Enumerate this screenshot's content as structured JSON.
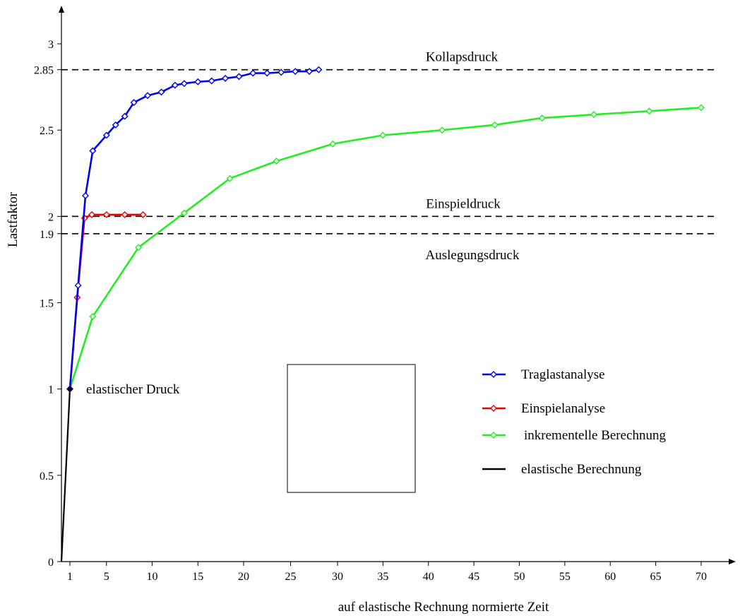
{
  "colors": {
    "traglast": "#0000ee",
    "einspiel": "#ee0000",
    "inkrementell": "#22ee22",
    "elastisch": "#000000",
    "axis": "#000000",
    "reference_line": "#000000"
  },
  "chart_data": {
    "type": "line",
    "title": "",
    "xlabel": "auf elastische Rechnung normierte Zeit",
    "ylabel": "Lastfaktor",
    "x_axis": {
      "scale": "piecewise-linear",
      "ticks": [
        1,
        5,
        10,
        15,
        20,
        25,
        30,
        35,
        40,
        45,
        50,
        55,
        60,
        65,
        70
      ],
      "tick_labels": [
        "1",
        "5",
        "10",
        "15",
        "20",
        "25",
        "30",
        "35",
        "40",
        "45",
        "50",
        "55",
        "60",
        "65",
        "70"
      ]
    },
    "y_axis": {
      "range": [
        0,
        3.05
      ],
      "ticks": [
        0,
        0.5,
        1,
        1.5,
        1.9,
        2,
        2.5,
        2.85,
        3
      ],
      "tick_labels": [
        "0",
        "0.5",
        "1",
        "1.5",
        "1.9",
        "2",
        "2.5",
        "2.85",
        "3"
      ]
    },
    "grid": false,
    "legend_position": "center-right",
    "reference_lines": [
      {
        "y": 2.85,
        "label": "Kollapsdruck",
        "label_position": "above"
      },
      {
        "y": 2.0,
        "label": "Einspieldruck",
        "label_position": "above"
      },
      {
        "y": 1.9,
        "label": "Auslegungsdruck",
        "label_position": "below"
      }
    ],
    "annotations": [
      {
        "text": "elastischer Druck",
        "x": 1,
        "y": 1
      }
    ],
    "series": [
      {
        "name": "Traglastanalyse",
        "color_key": "traglast",
        "marker": "diamond",
        "x": [
          1,
          1.9,
          2.7,
          3.5,
          5,
          6,
          7,
          8,
          9.5,
          11,
          12.5,
          13.5,
          15,
          16.5,
          18,
          19.5,
          21,
          22.5,
          24,
          25.5,
          27,
          28
        ],
        "y": [
          1.0,
          1.6,
          2.12,
          2.38,
          2.47,
          2.53,
          2.58,
          2.66,
          2.7,
          2.72,
          2.76,
          2.77,
          2.78,
          2.785,
          2.8,
          2.81,
          2.83,
          2.83,
          2.835,
          2.84,
          2.84,
          2.85
        ]
      },
      {
        "name": "Einspielanalyse",
        "color_key": "einspiel",
        "marker": "diamond",
        "x": [
          1,
          1.8,
          2.6,
          3.4,
          5,
          7,
          9
        ],
        "y": [
          1.0,
          1.53,
          1.99,
          2.01,
          2.01,
          2.01,
          2.01
        ]
      },
      {
        "name": "inkrementelle Berechnung",
        "color_key": "inkrementell",
        "marker": "diamond",
        "x": [
          1,
          3.5,
          8.5,
          13.5,
          18.5,
          23.5,
          29.5,
          35,
          41.5,
          47.3,
          52.5,
          58.2,
          64.3,
          70
        ],
        "y": [
          1.0,
          1.42,
          1.82,
          2.02,
          2.22,
          2.32,
          2.42,
          2.47,
          2.5,
          2.53,
          2.57,
          2.59,
          2.61,
          2.63
        ]
      },
      {
        "name": "elastische Berechnung",
        "color_key": "elastisch",
        "marker": "none",
        "x": [
          0,
          1
        ],
        "y": [
          0,
          1.0
        ]
      }
    ]
  }
}
